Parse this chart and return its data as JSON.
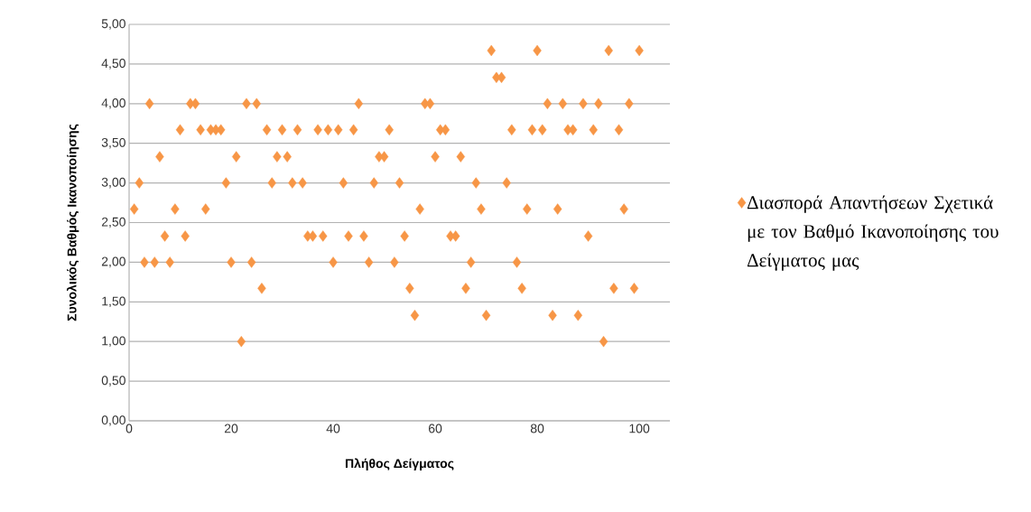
{
  "chart_data": {
    "type": "scatter",
    "xlabel": "Πλήθος Δείγματος",
    "ylabel": "Συνολικός Βαθμός Ικανοποίησης",
    "xlim": [
      0,
      106
    ],
    "xticks": [
      0,
      20,
      40,
      60,
      80,
      100
    ],
    "ylim": [
      0,
      5
    ],
    "yticks": [
      {
        "value": 0,
        "label": "0,00"
      },
      {
        "value": 0.5,
        "label": "0,50"
      },
      {
        "value": 1,
        "label": "1,00"
      },
      {
        "value": 1.5,
        "label": "1,50"
      },
      {
        "value": 2,
        "label": "2,00"
      },
      {
        "value": 2.5,
        "label": "2,50"
      },
      {
        "value": 3,
        "label": "3,00"
      },
      {
        "value": 3.5,
        "label": "3,50"
      },
      {
        "value": 4,
        "label": "4,00"
      },
      {
        "value": 4.5,
        "label": "4,50"
      },
      {
        "value": 5,
        "label": "5,00"
      }
    ],
    "grid": "y",
    "legend": "right",
    "marker": "diamond",
    "series": [
      {
        "name": "Διασπορά Απαντήσεων Σχετικά με τον Βαθμό Ικανοποίησης του Δείγματος μας",
        "color": "#f79646",
        "x": [
          1,
          2,
          3,
          4,
          5,
          6,
          7,
          8,
          9,
          10,
          11,
          12,
          13,
          14,
          15,
          16,
          17,
          18,
          19,
          20,
          21,
          22,
          23,
          24,
          25,
          26,
          27,
          28,
          29,
          30,
          31,
          32,
          33,
          34,
          35,
          36,
          37,
          38,
          39,
          40,
          41,
          42,
          43,
          44,
          45,
          46,
          47,
          48,
          49,
          50,
          51,
          52,
          53,
          54,
          55,
          56,
          57,
          58,
          59,
          60,
          61,
          62,
          63,
          64,
          65,
          66,
          67,
          68,
          69,
          70,
          71,
          72,
          73,
          74,
          75,
          76,
          77,
          78,
          79,
          80,
          81,
          82,
          83,
          84,
          85,
          86,
          87,
          88,
          89,
          90,
          91,
          92,
          93,
          94,
          95,
          96,
          97,
          98,
          99,
          100
        ],
        "values": [
          2.67,
          3.0,
          2.0,
          4.0,
          2.0,
          3.33,
          2.33,
          2.0,
          2.67,
          3.67,
          2.33,
          4.0,
          4.0,
          3.67,
          2.67,
          3.67,
          3.67,
          3.67,
          3.0,
          2.0,
          3.33,
          1.0,
          4.0,
          2.0,
          4.0,
          1.67,
          3.67,
          3.0,
          3.33,
          3.67,
          3.33,
          3.0,
          3.67,
          3.0,
          2.33,
          2.33,
          3.67,
          2.33,
          3.67,
          2.0,
          3.67,
          3.0,
          2.33,
          3.67,
          4.0,
          2.33,
          2.0,
          3.0,
          3.33,
          3.33,
          3.67,
          2.0,
          3.0,
          2.33,
          1.67,
          1.33,
          2.67,
          4.0,
          4.0,
          3.33,
          3.67,
          3.67,
          2.33,
          2.33,
          3.33,
          1.67,
          2.0,
          3.0,
          2.67,
          1.33,
          4.67,
          4.33,
          4.33,
          3.0,
          3.67,
          2.0,
          1.67,
          2.67,
          3.67,
          4.67,
          3.67,
          4.0,
          1.33,
          2.67,
          4.0,
          3.67,
          3.67,
          1.33,
          4.0,
          2.33,
          3.67,
          4.0,
          1.0,
          4.67,
          1.67,
          3.67,
          2.67,
          4.0,
          1.67,
          4.67
        ]
      }
    ]
  }
}
